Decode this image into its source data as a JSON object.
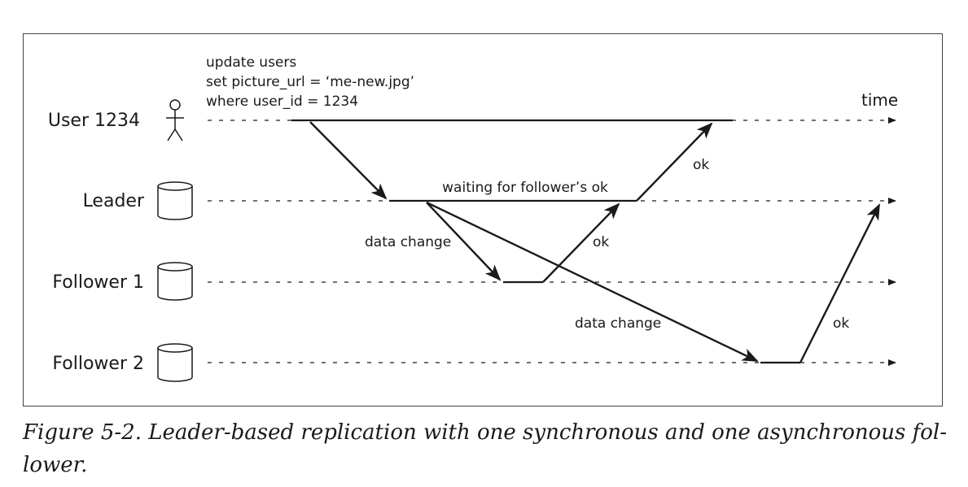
{
  "sql": {
    "line1": "update users",
    "line2": "set picture_url = ‘me-new.jpg’",
    "line3": "where user_id = 1234"
  },
  "time_label": "time",
  "nodes": {
    "user": "User 1234",
    "leader": "Leader",
    "follower1": "Follower 1",
    "follower2": "Follower 2"
  },
  "messages": {
    "waiting": "waiting for follower’s ok",
    "ok_leader_to_user": "ok",
    "ok_follower1": "ok",
    "data_change_f1": "data change",
    "data_change_f2": "data change",
    "ok_follower2": "ok"
  },
  "caption": "Figure 5-2. Leader-based replication with one synchronous and one asynchronous fol-lower."
}
